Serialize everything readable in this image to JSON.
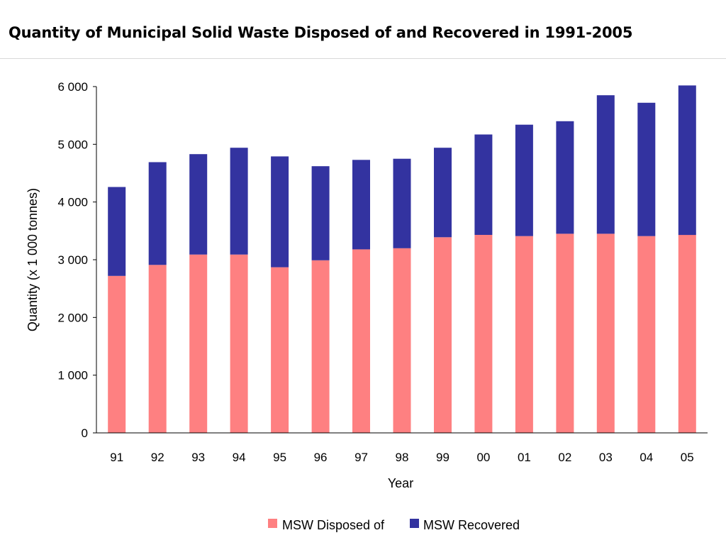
{
  "page": {
    "title": "Quantity of Municipal Solid Waste Disposed of and Recovered in 1991-2005"
  },
  "colors": {
    "disposed": "#fe8081",
    "recovered": "#3333a0",
    "axis": "#000000"
  },
  "chart_data": {
    "type": "bar",
    "stacked": true,
    "title": "Quantity of Municipal Solid Waste Disposed of and Recovered in 1991-2005",
    "xlabel": "Year",
    "ylabel": "Quantity (x 1 000 tonnes)",
    "categories": [
      "91",
      "92",
      "93",
      "94",
      "95",
      "96",
      "97",
      "98",
      "99",
      "00",
      "01",
      "02",
      "03",
      "04",
      "05"
    ],
    "series": [
      {
        "name": "MSW Disposed of",
        "color": "#fe8081",
        "values": [
          2720,
          2910,
          3090,
          3090,
          2870,
          2990,
          3180,
          3200,
          3390,
          3430,
          3410,
          3450,
          3450,
          3410,
          3430
        ]
      },
      {
        "name": "MSW Recovered",
        "color": "#3333a0",
        "values": [
          1540,
          1780,
          1740,
          1850,
          1920,
          1630,
          1550,
          1550,
          1550,
          1740,
          1930,
          1950,
          2400,
          2310,
          2590
        ]
      }
    ],
    "yticks": [
      "0",
      "1 000",
      "2 000",
      "3 000",
      "4 000",
      "5 000",
      "6 000"
    ],
    "ylim": [
      0,
      6000
    ],
    "grid": false,
    "legend_position": "bottom"
  }
}
